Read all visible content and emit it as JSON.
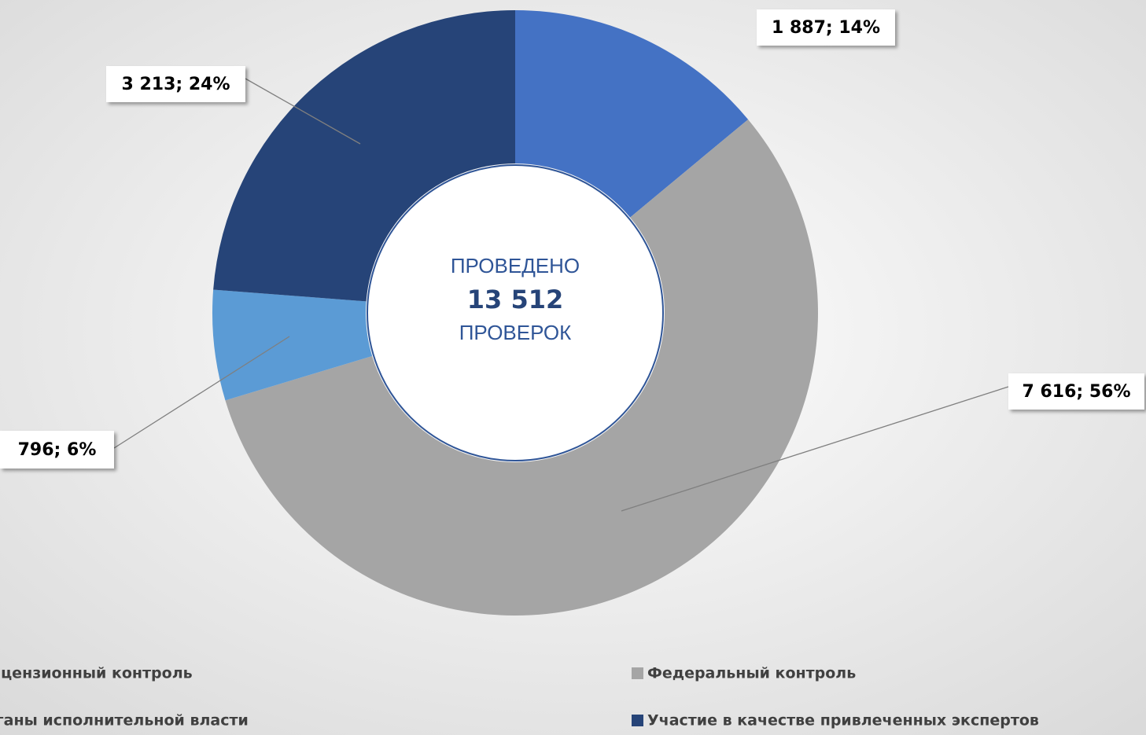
{
  "chart_data": {
    "type": "donut",
    "categories": [
      "Лицензионный контроль",
      "Федеральный контроль",
      "Органы исполнительной власти",
      "Участие в качестве привлеченных экспертов"
    ],
    "values": [
      1887,
      7616,
      796,
      3213
    ],
    "value_labels": [
      "1 887; 14%",
      "7 616; 56%",
      "796; 6%",
      "3 213; 24%"
    ],
    "colors": [
      "#4472c4",
      "#a5a5a5",
      "#5b9bd5",
      "#264478"
    ],
    "center_text": [
      "ПРОВЕДЕНО",
      "13 512",
      "ПРОВЕРОК"
    ],
    "legend": "bottom"
  }
}
